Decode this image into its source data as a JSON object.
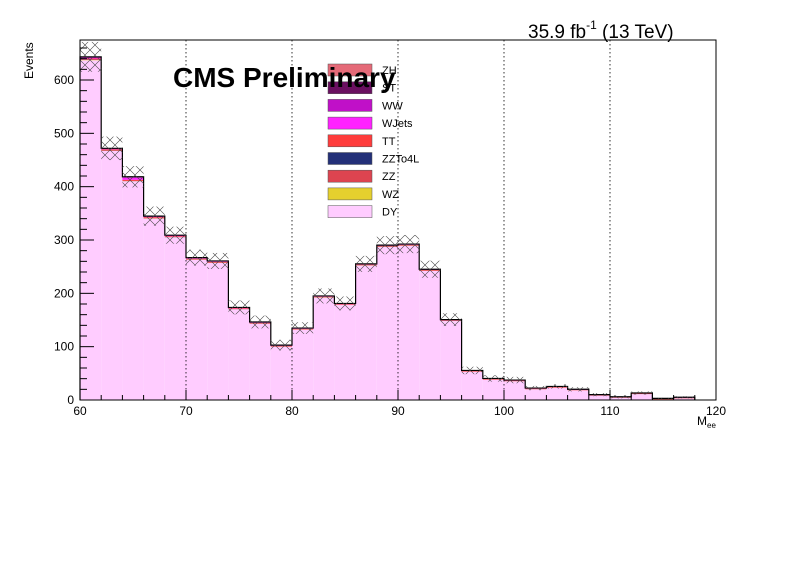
{
  "chart_data": {
    "type": "bar",
    "title": "CMS Preliminary",
    "lumi_label": "35.9 fb",
    "lumi_superscript": "-1",
    "lumi_energy": " (13 TeV)",
    "xlabel_main": "M",
    "xlabel_sub": "ee",
    "ylabel": "Events",
    "xlim": [
      60,
      120
    ],
    "ylim": [
      0,
      675
    ],
    "x_ticks": [
      "60",
      "70",
      "80",
      "90",
      "100",
      "110",
      "120"
    ],
    "y_ticks": [
      "0",
      "100",
      "200",
      "300",
      "400",
      "500",
      "600"
    ],
    "grid_x": true,
    "legend_position": "top-center",
    "bin_edges": [
      60,
      62,
      64,
      66,
      68,
      70,
      72,
      74,
      76,
      78,
      80,
      82,
      84,
      86,
      88,
      90,
      92,
      94,
      96,
      98,
      100,
      102,
      104,
      106,
      108,
      110,
      112,
      114,
      116,
      118
    ],
    "series": [
      {
        "name": "DY",
        "color": "#ffccff",
        "values": [
          637,
          467,
          410,
          340,
          305,
          263,
          257,
          170,
          143,
          100,
          132,
          192,
          178,
          252,
          287,
          289,
          242,
          148,
          53,
          38,
          35,
          20,
          23,
          18,
          8,
          4,
          11,
          1,
          3
        ]
      },
      {
        "name": "WZ",
        "color": "#e5d02e",
        "values": [
          0.5,
          0.3,
          0.3,
          0.3,
          0.2,
          0.2,
          0.2,
          0.2,
          0.1,
          0.1,
          0.1,
          0.2,
          0.2,
          0.2,
          0.3,
          0.3,
          0.2,
          0.2,
          0.1,
          0.1,
          0.1,
          0.1,
          0.1,
          0.1,
          0.1,
          0.1,
          0.1,
          0.1,
          0.1
        ]
      },
      {
        "name": "ZZ",
        "color": "#dd4450",
        "values": [
          0.3,
          0.2,
          0.2,
          0.2,
          0.2,
          0.1,
          0.1,
          0.1,
          0.1,
          0.1,
          0.1,
          0.1,
          0.1,
          0.2,
          0.2,
          0.2,
          0.2,
          0.1,
          0.1,
          0.1,
          0.1,
          0.1,
          0.1,
          0.1,
          0.1,
          0.1,
          0.1,
          0.1,
          0.1
        ]
      },
      {
        "name": "ZZTo4L",
        "color": "#233078",
        "values": [
          0.5,
          0.3,
          0.3,
          0.3,
          0.2,
          0.2,
          0.2,
          0.2,
          0.2,
          0.1,
          0.1,
          0.2,
          0.2,
          0.2,
          0.3,
          0.3,
          0.2,
          0.2,
          0.1,
          0.1,
          0.1,
          0.1,
          0.1,
          0.1,
          0.1,
          0.1,
          0.1,
          0.1,
          0.1
        ]
      },
      {
        "name": "TT",
        "color": "#ff3c3c",
        "values": [
          2,
          2,
          2,
          2,
          1.5,
          1.5,
          1.5,
          1.5,
          1.2,
          1.2,
          1.2,
          1.2,
          1.2,
          1.2,
          1.2,
          1.2,
          1.2,
          1,
          1,
          1,
          1,
          1,
          1,
          0.8,
          0.8,
          0.8,
          0.8,
          0.8,
          0.8
        ]
      },
      {
        "name": "WJets",
        "color": "#ff22ff",
        "values": [
          1,
          0.5,
          4,
          0.5,
          0.5,
          0.5,
          0.5,
          0.5,
          0.5,
          0.3,
          0.3,
          0.3,
          0.3,
          0.3,
          0.3,
          0.3,
          0.3,
          0.3,
          0.3,
          0.3,
          0.3,
          0.3,
          0.3,
          0.3,
          0.3,
          0.3,
          0.3,
          0.3,
          0.3
        ]
      },
      {
        "name": "WW",
        "color": "#c010c8",
        "values": [
          1.5,
          1.2,
          1.2,
          1,
          1,
          1,
          0.8,
          0.8,
          0.8,
          0.8,
          0.8,
          0.8,
          0.8,
          0.8,
          0.8,
          0.8,
          0.8,
          0.6,
          0.6,
          0.6,
          0.6,
          0.6,
          0.6,
          0.5,
          0.5,
          0.5,
          0.5,
          0.5,
          0.5
        ]
      },
      {
        "name": "ST",
        "color": "#6a1060",
        "values": [
          0.5,
          0.3,
          0.5,
          0.3,
          0.3,
          0.3,
          0.3,
          0.2,
          0.2,
          0.2,
          0.2,
          0.2,
          0.2,
          0.2,
          0.2,
          0.2,
          0.2,
          0.2,
          0.1,
          0.1,
          0.1,
          0.1,
          0.1,
          0.1,
          0.1,
          0.1,
          0.1,
          0.1,
          0.1
        ]
      },
      {
        "name": "ZH",
        "color": "#e56a78",
        "values": [
          0.1,
          0.1,
          0.1,
          0.1,
          0.1,
          0.1,
          0.1,
          0.1,
          0.1,
          0.1,
          0.1,
          0.1,
          0.1,
          0.1,
          0.1,
          0.1,
          0.1,
          0.1,
          0.1,
          0.1,
          0.1,
          0.1,
          0.1,
          0.1,
          0.1,
          0.1,
          0.1,
          0.1,
          0.1
        ]
      }
    ],
    "uncertainty": [
      28,
      22,
      20,
      18,
      16,
      15,
      15,
      13,
      12,
      10,
      11,
      14,
      13,
      15,
      17,
      17,
      16,
      12,
      7,
      6,
      6,
      4,
      4,
      4,
      3,
      3,
      3,
      1,
      2
    ],
    "legend_order": [
      "ZH",
      "ST",
      "WW",
      "WJets",
      "TT",
      "ZZTo4L",
      "ZZ",
      "WZ",
      "DY"
    ]
  }
}
